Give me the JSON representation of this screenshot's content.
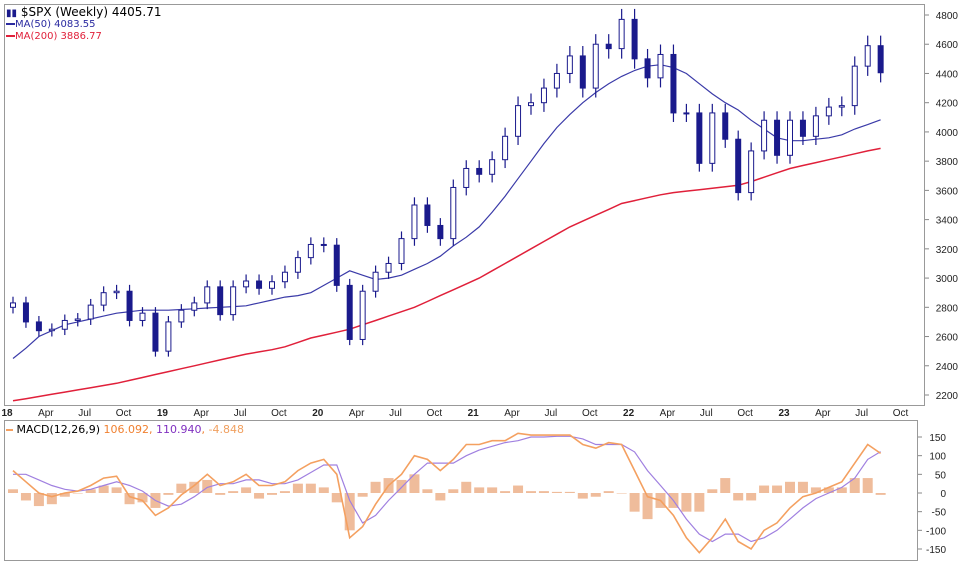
{
  "legend": {
    "title": "$SPX (Weekly) 4405.71",
    "ma50": "MA(50) 4083.55",
    "ma200": "MA(200) 3886.77",
    "macd_label": "MACD(12,26,9)",
    "macd_value": "106.092",
    "signal_value": "110.940",
    "hist_value": "-4.848"
  },
  "colors": {
    "price": "#1a1a8c",
    "ma50": "#3a3aa8",
    "ma200": "#e0203a",
    "macd": "#f4a060",
    "signal": "#a080e0",
    "hist": "#e8a070",
    "grid": "#c8c8c8"
  },
  "chart_data": [
    {
      "type": "ohlc",
      "title": "$SPX (Weekly)",
      "ylim": [
        2200,
        4800
      ],
      "yticks": [
        "4800",
        "4600",
        "4400",
        "4200",
        "4000",
        "3800",
        "3600",
        "3400",
        "3200",
        "3000",
        "2800",
        "2600",
        "2400",
        "2200"
      ],
      "xticks": [
        "18",
        "Apr",
        "Jul",
        "Oct",
        "19",
        "Apr",
        "Jul",
        "Oct",
        "20",
        "Apr",
        "Jul",
        "Oct",
        "21",
        "Apr",
        "Jul",
        "Oct",
        "22",
        "Apr",
        "Jul",
        "Oct",
        "23",
        "Apr",
        "Jul",
        "Oct"
      ],
      "x_start": "2018-01",
      "x_step": "month",
      "close": [
        2830,
        2700,
        2640,
        2650,
        2710,
        2720,
        2815,
        2900,
        2910,
        2710,
        2760,
        2500,
        2700,
        2780,
        2830,
        2940,
        2750,
        2940,
        2980,
        2930,
        2975,
        3040,
        3140,
        3230,
        3225,
        2950,
        2580,
        2910,
        3040,
        3100,
        3270,
        3500,
        3360,
        3270,
        3620,
        3750,
        3710,
        3810,
        3970,
        4180,
        4200,
        4300,
        4400,
        4520,
        4300,
        4600,
        4570,
        4770,
        4500,
        4370,
        4530,
        4130,
        4130,
        3785,
        4130,
        3950,
        3585,
        3870,
        4080,
        3840,
        4080,
        3970,
        4110,
        4170,
        4180,
        4450,
        4590,
        4405
      ],
      "series": [
        {
          "name": "MA(50)",
          "values": [
            2450,
            2520,
            2600,
            2640,
            2680,
            2700,
            2720,
            2740,
            2760,
            2770,
            2780,
            2780,
            2780,
            2785,
            2790,
            2795,
            2800,
            2805,
            2810,
            2830,
            2850,
            2870,
            2880,
            2900,
            2950,
            3000,
            3050,
            3020,
            2990,
            3000,
            3020,
            3060,
            3100,
            3150,
            3220,
            3280,
            3350,
            3450,
            3560,
            3680,
            3800,
            3920,
            4030,
            4120,
            4200,
            4270,
            4330,
            4380,
            4420,
            4450,
            4460,
            4440,
            4400,
            4330,
            4260,
            4200,
            4150,
            4080,
            4020,
            3960,
            3940,
            3940,
            3950,
            3960,
            3980,
            4020,
            4050,
            4083
          ]
        },
        {
          "name": "MA(200)",
          "values": [
            2160,
            2175,
            2190,
            2205,
            2220,
            2235,
            2250,
            2265,
            2280,
            2300,
            2320,
            2340,
            2360,
            2380,
            2400,
            2420,
            2440,
            2460,
            2480,
            2495,
            2510,
            2530,
            2560,
            2590,
            2610,
            2630,
            2650,
            2680,
            2710,
            2740,
            2770,
            2800,
            2840,
            2880,
            2920,
            2960,
            3000,
            3050,
            3100,
            3150,
            3200,
            3250,
            3300,
            3350,
            3390,
            3430,
            3470,
            3510,
            3530,
            3550,
            3570,
            3585,
            3595,
            3605,
            3615,
            3625,
            3635,
            3660,
            3690,
            3720,
            3750,
            3770,
            3790,
            3810,
            3830,
            3850,
            3870,
            3887
          ]
        }
      ]
    },
    {
      "type": "line",
      "title": "MACD(12,26,9)",
      "ylim": [
        -170,
        170
      ],
      "yticks": [
        "150",
        "100",
        "50",
        "0",
        "-50",
        "-100",
        "-150"
      ],
      "series": [
        {
          "name": "MACD",
          "values": [
            60,
            30,
            0,
            -10,
            0,
            5,
            20,
            40,
            45,
            -10,
            -20,
            -60,
            -40,
            -5,
            20,
            50,
            20,
            30,
            50,
            20,
            20,
            30,
            60,
            80,
            90,
            50,
            -120,
            -90,
            -30,
            20,
            50,
            100,
            90,
            60,
            90,
            130,
            130,
            140,
            140,
            160,
            155,
            155,
            155,
            155,
            130,
            120,
            135,
            130,
            60,
            -10,
            -20,
            -60,
            -120,
            -160,
            -120,
            -70,
            -130,
            -150,
            -100,
            -80,
            -40,
            -10,
            0,
            15,
            30,
            80,
            130,
            106
          ]
        },
        {
          "name": "Signal",
          "values": [
            50,
            50,
            35,
            20,
            10,
            5,
            10,
            20,
            30,
            20,
            5,
            -20,
            -35,
            -30,
            -10,
            15,
            25,
            25,
            35,
            35,
            25,
            25,
            35,
            55,
            75,
            75,
            -20,
            -80,
            -60,
            -20,
            15,
            50,
            80,
            80,
            80,
            100,
            115,
            125,
            135,
            140,
            150,
            150,
            152,
            152,
            145,
            130,
            130,
            130,
            110,
            60,
            20,
            -20,
            -70,
            -110,
            -130,
            -110,
            -110,
            -130,
            -120,
            -100,
            -70,
            -40,
            -15,
            0,
            15,
            40,
            90,
            111
          ]
        }
      ]
    }
  ]
}
